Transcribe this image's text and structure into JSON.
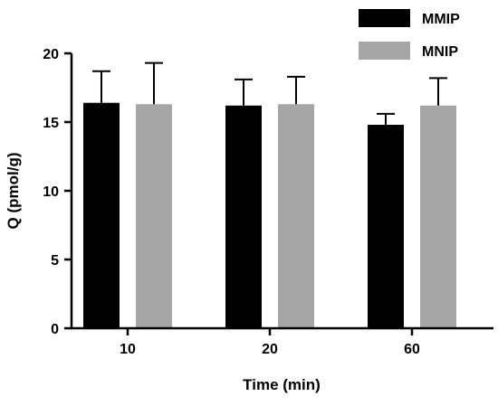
{
  "chart_data": {
    "type": "bar",
    "title": "",
    "xlabel": "Time (min)",
    "ylabel": "Q (pmol/g)",
    "categories": [
      "10",
      "20",
      "60"
    ],
    "ylim": [
      0,
      20
    ],
    "yticks": [
      "0",
      "5",
      "10",
      "15",
      "20"
    ],
    "error_bars": "upper",
    "legend_position": "top-right",
    "series": [
      {
        "name": "MMIP",
        "color": "#000000",
        "values": [
          16.4,
          16.2,
          14.8
        ],
        "errors": [
          2.3,
          1.9,
          0.8
        ]
      },
      {
        "name": "MNIP",
        "color": "#a6a6a6",
        "values": [
          16.3,
          16.3,
          16.2
        ],
        "errors": [
          3.0,
          2.0,
          2.0
        ]
      }
    ]
  }
}
